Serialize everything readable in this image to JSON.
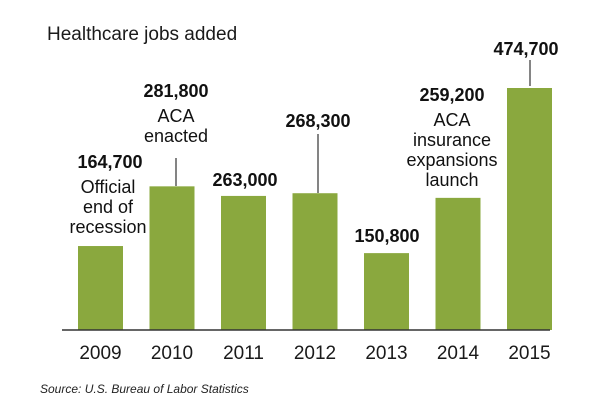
{
  "chart_data": {
    "type": "bar",
    "title": "Healthcare jobs added",
    "categories": [
      "2009",
      "2010",
      "2011",
      "2012",
      "2013",
      "2014",
      "2015"
    ],
    "values": [
      164700,
      281800,
      263000,
      268300,
      150800,
      259200,
      474700
    ],
    "value_labels": [
      "164,700",
      "281,800",
      "263,000",
      "268,300",
      "150,800",
      "259,200",
      "474,700"
    ],
    "annotations": [
      {
        "category": "2009",
        "lines": [
          "Official",
          "end of",
          "recession"
        ]
      },
      {
        "category": "2010",
        "lines": [
          "ACA",
          "enacted"
        ]
      },
      {
        "category": "2014",
        "lines": [
          "ACA",
          "insurance",
          "expansions",
          "launch"
        ]
      }
    ],
    "xlabel": "",
    "ylabel": "",
    "ylim": [
      0,
      500000
    ],
    "grid": false,
    "bar_color": "#8aa83e",
    "source": "Source: U.S. Bureau of Labor Statistics"
  }
}
